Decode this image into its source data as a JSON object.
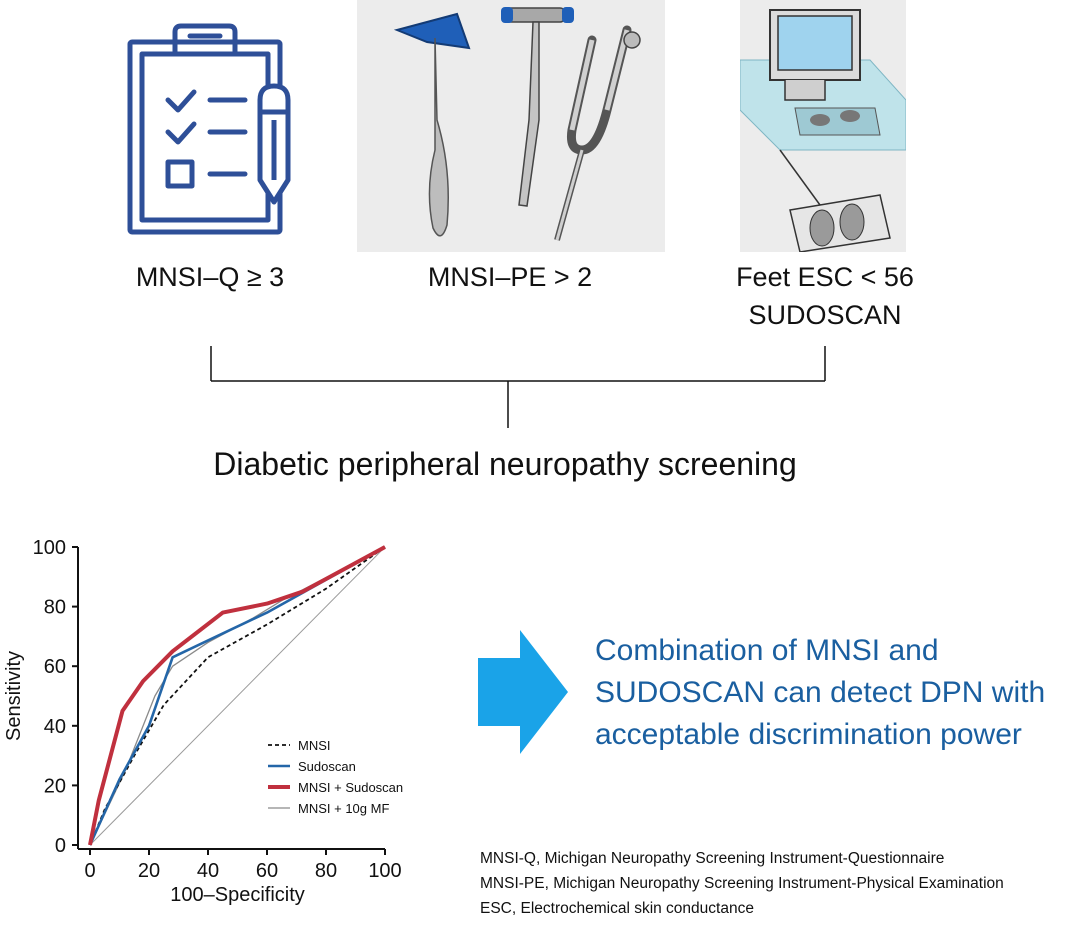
{
  "top_captions": {
    "questionnaire": "MNSI–Q ≥ 3",
    "physical_exam": "MNSI–PE > 2",
    "esc_line1": "Feet ESC < 56",
    "esc_line2": "SUDOSCAN"
  },
  "icons": {
    "questionnaire": "clipboard-checklist-pencil-icon",
    "physical_exam": "reflex-hammers-tuning-fork-illustration",
    "esc": "sudoscan-device-illustration"
  },
  "main_title": "Diabetic peripheral neuropathy screening",
  "conclusion": {
    "line1": "Combination of MNSI and",
    "line2": "SUDOSCAN can detect DPN with",
    "line3": "acceptable discrimination power"
  },
  "abbreviations": [
    "MNSI-Q, Michigan Neuropathy Screening Instrument-Questionnaire",
    "MNSI-PE, Michigan Neuropathy Screening Instrument-Physical Examination",
    "ESC, Electrochemical skin conductance"
  ],
  "colors": {
    "icon_blue": "#2e4f98",
    "arrow_blue": "#1aa3e8",
    "conclusion_blue": "#1a5fa0",
    "sudoscan_line": "#2466a8",
    "combo_line": "#c0303e",
    "mf_line": "#8a8a8a",
    "mnsi_line": "#111111"
  },
  "chart_data": {
    "type": "line",
    "title": "",
    "xlabel": "100–Specificity",
    "ylabel": "Sensitivity",
    "xlim": [
      0,
      100
    ],
    "ylim": [
      0,
      100
    ],
    "xticks": [
      "0",
      "20",
      "40",
      "60",
      "80",
      "100"
    ],
    "yticks": [
      "0",
      "20",
      "40",
      "60",
      "80",
      "100"
    ],
    "legend_position": "bottom-right",
    "grid": false,
    "reference_line": [
      [
        0,
        0
      ],
      [
        100,
        100
      ]
    ],
    "series": [
      {
        "name": "MNSI",
        "style": "dashed",
        "color": "#111111",
        "points": [
          [
            0,
            0
          ],
          [
            5,
            12
          ],
          [
            15,
            30
          ],
          [
            25,
            47
          ],
          [
            40,
            63
          ],
          [
            60,
            74
          ],
          [
            80,
            86
          ],
          [
            100,
            100
          ]
        ]
      },
      {
        "name": "Sudoscan",
        "style": "solid",
        "color": "#2466a8",
        "points": [
          [
            0,
            0
          ],
          [
            10,
            22
          ],
          [
            20,
            40
          ],
          [
            28,
            63
          ],
          [
            45,
            71
          ],
          [
            60,
            78
          ],
          [
            100,
            100
          ]
        ]
      },
      {
        "name": "MNSI + Sudoscan",
        "style": "bold",
        "color": "#c0303e",
        "points": [
          [
            0,
            0
          ],
          [
            3,
            15
          ],
          [
            11,
            45
          ],
          [
            18,
            55
          ],
          [
            28,
            65
          ],
          [
            45,
            78
          ],
          [
            60,
            81
          ],
          [
            72,
            85
          ],
          [
            100,
            100
          ]
        ]
      },
      {
        "name": "MNSI + 10g MF",
        "style": "thin",
        "color": "#8a8a8a",
        "points": [
          [
            0,
            0
          ],
          [
            12,
            25
          ],
          [
            22,
            50
          ],
          [
            28,
            60
          ],
          [
            40,
            68
          ],
          [
            55,
            76
          ],
          [
            65,
            82
          ],
          [
            100,
            100
          ]
        ]
      }
    ]
  }
}
